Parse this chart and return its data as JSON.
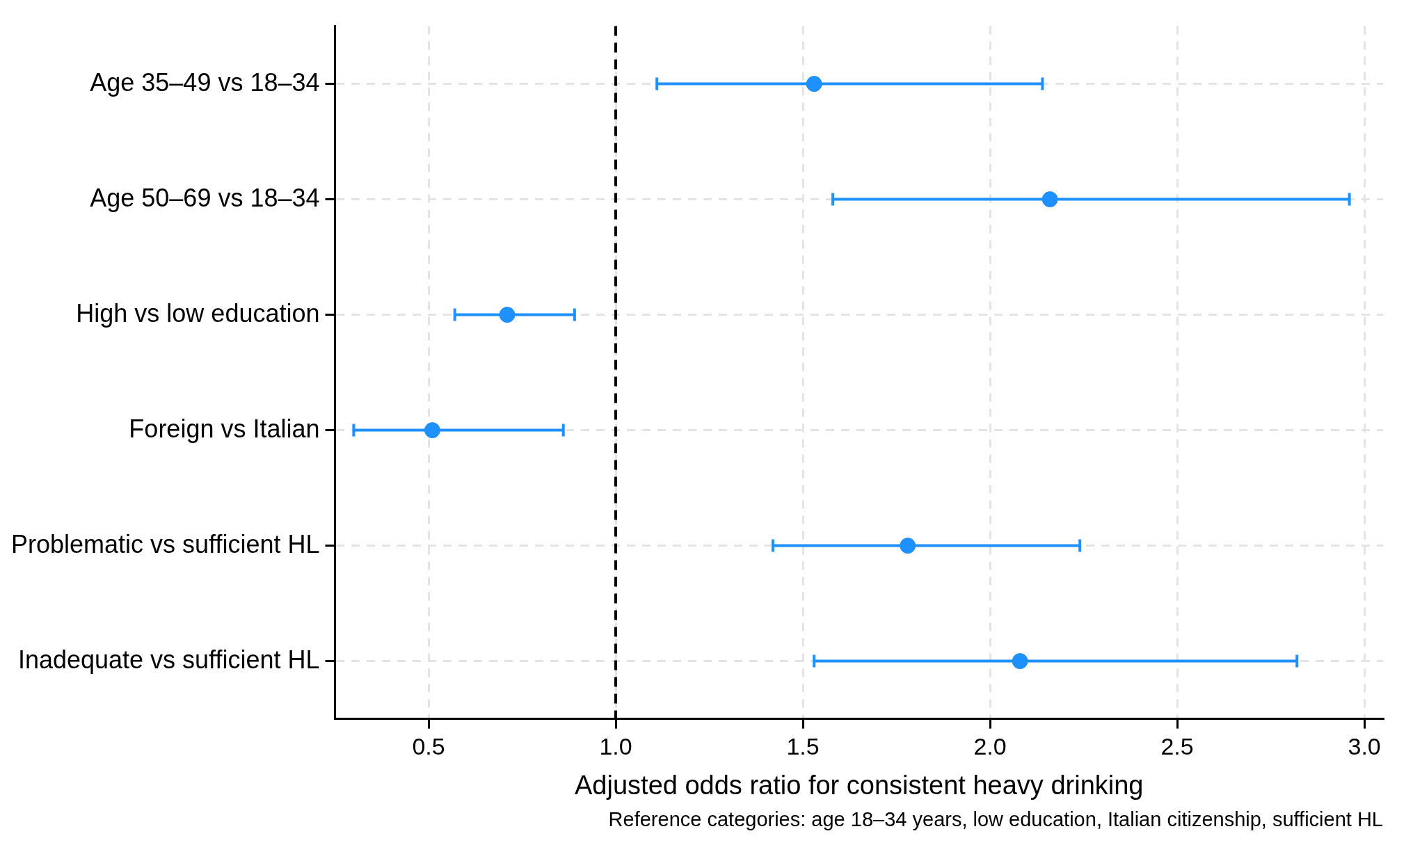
{
  "chart_data": {
    "type": "scatter",
    "orientation": "horizontal",
    "xlabel": "Adjusted odds ratio for consistent heavy drinking",
    "categories": [
      "Age 35–49 vs 18–34",
      "Age 50–69 vs 18–34",
      "High vs low education",
      "Foreign vs Italian",
      "Problematic vs sufficient HL",
      "Inadequate vs sufficient HL"
    ],
    "values": [
      1.53,
      2.16,
      0.71,
      0.51,
      1.78,
      2.08
    ],
    "errors": [
      [
        1.11,
        2.14
      ],
      [
        1.58,
        2.96
      ],
      [
        0.57,
        0.89
      ],
      [
        0.3,
        0.86
      ],
      [
        1.42,
        2.24
      ],
      [
        1.53,
        2.82
      ]
    ],
    "color": "#1e90ff",
    "marker": "circle",
    "xlim": [
      0.25,
      3.05
    ],
    "xticks": [
      0.5,
      {
        "value": 1,
        "label": "1.0"
      },
      1.5,
      {
        "value": 2,
        "label": "2.0"
      },
      2.5,
      {
        "value": 3,
        "label": "3.0"
      }
    ],
    "ref_lines": [
      {
        "axis": "x",
        "value": 1,
        "color": "#000000",
        "line_style": "dashed"
      }
    ],
    "grid": true,
    "annotations": [
      "Reference categories: age 18–34 years, low education, Italian citizenship, sufficient HL"
    ]
  }
}
